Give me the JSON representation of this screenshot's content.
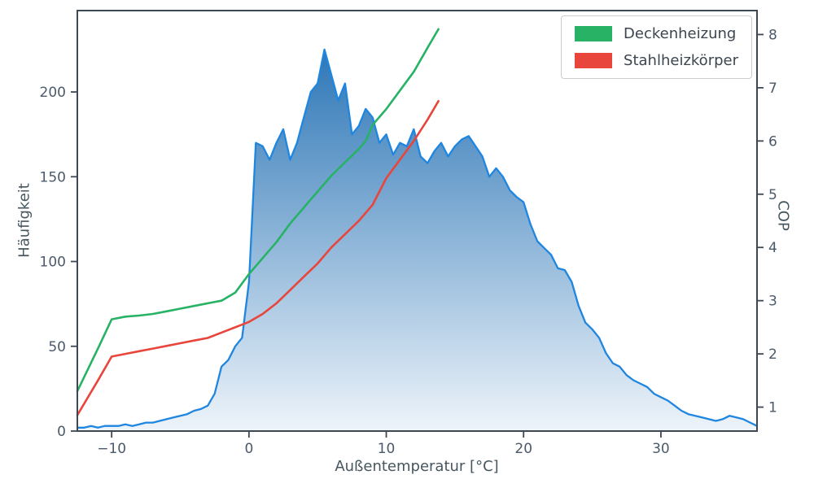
{
  "chart_data": {
    "type": "area",
    "title": "",
    "xlabel": "Außentemperatur [°C]",
    "ylabel_left": "Häufigkeit",
    "ylabel_right": "COP",
    "x_range": [
      -12.5,
      37
    ],
    "y_left_range": [
      0,
      248
    ],
    "y_right_range": [
      0.55,
      8.45
    ],
    "x_ticks": [
      -10,
      0,
      10,
      20,
      30
    ],
    "x_tick_labels": [
      "−10",
      "0",
      "10",
      "20",
      "30"
    ],
    "y_left_ticks": [
      0,
      50,
      100,
      150,
      200
    ],
    "y_left_tick_labels": [
      "0",
      "50",
      "100",
      "150",
      "200"
    ],
    "y_right_ticks": [
      1,
      2,
      3,
      4,
      5,
      6,
      7,
      8
    ],
    "y_right_tick_labels": [
      "1",
      "2",
      "3",
      "4",
      "5",
      "6",
      "7",
      "8"
    ],
    "grid": false,
    "legend_position": "upper right",
    "histogram": {
      "name": "Häufigkeit",
      "axis": "left",
      "line_color": "#1f86e0",
      "fill_top": "#1a6ab0",
      "fill_bottom": "#eef4fa",
      "x_start": -12.5,
      "x_step": 0.5,
      "values": [
        2,
        2,
        3,
        2,
        3,
        3,
        3,
        4,
        3,
        4,
        5,
        5,
        6,
        7,
        8,
        9,
        10,
        12,
        13,
        15,
        22,
        38,
        42,
        50,
        55,
        88,
        170,
        168,
        160,
        170,
        178,
        160,
        170,
        185,
        200,
        205,
        225,
        210,
        195,
        205,
        175,
        180,
        190,
        185,
        170,
        175,
        163,
        170,
        168,
        178,
        162,
        158,
        165,
        170,
        162,
        168,
        172,
        174,
        168,
        162,
        150,
        155,
        150,
        142,
        138,
        135,
        122,
        112,
        108,
        104,
        96,
        95,
        88,
        74,
        64,
        60,
        55,
        46,
        40,
        38,
        33,
        30,
        28,
        26,
        22,
        20,
        18,
        15,
        12,
        10,
        9,
        8,
        7,
        6,
        7,
        9,
        8,
        7,
        5,
        3
      ]
    },
    "series": [
      {
        "name": "Deckenheizung",
        "axis": "right",
        "color": "#27b266",
        "x": [
          -12.5,
          -11,
          -10,
          -9,
          -8,
          -7,
          -6,
          -5,
          -4,
          -3,
          -2,
          -1,
          0,
          1,
          2,
          3,
          4,
          5,
          6,
          7,
          8,
          8.5,
          9,
          9.5,
          10,
          11,
          12,
          13,
          13.8
        ],
        "y": [
          1.3,
          2.1,
          2.65,
          2.7,
          2.72,
          2.75,
          2.8,
          2.85,
          2.9,
          2.95,
          3.0,
          3.15,
          3.5,
          3.8,
          4.1,
          4.45,
          4.75,
          5.05,
          5.35,
          5.6,
          5.85,
          6.0,
          6.3,
          6.45,
          6.6,
          6.95,
          7.3,
          7.75,
          8.1
        ]
      },
      {
        "name": "Stahlheizkörper",
        "axis": "right",
        "color": "#e8453c",
        "x": [
          -12.5,
          -11,
          -10,
          -9,
          -8,
          -7,
          -6,
          -5,
          -4,
          -3,
          -2,
          -1,
          0,
          1,
          2,
          3,
          4,
          5,
          6,
          7,
          8,
          9,
          10,
          11,
          12,
          13,
          13.8
        ],
        "y": [
          0.85,
          1.5,
          1.95,
          2.0,
          2.05,
          2.1,
          2.15,
          2.2,
          2.25,
          2.3,
          2.4,
          2.5,
          2.6,
          2.75,
          2.95,
          3.2,
          3.45,
          3.7,
          4.0,
          4.25,
          4.5,
          4.8,
          5.3,
          5.65,
          6.0,
          6.4,
          6.75
        ]
      }
    ]
  }
}
